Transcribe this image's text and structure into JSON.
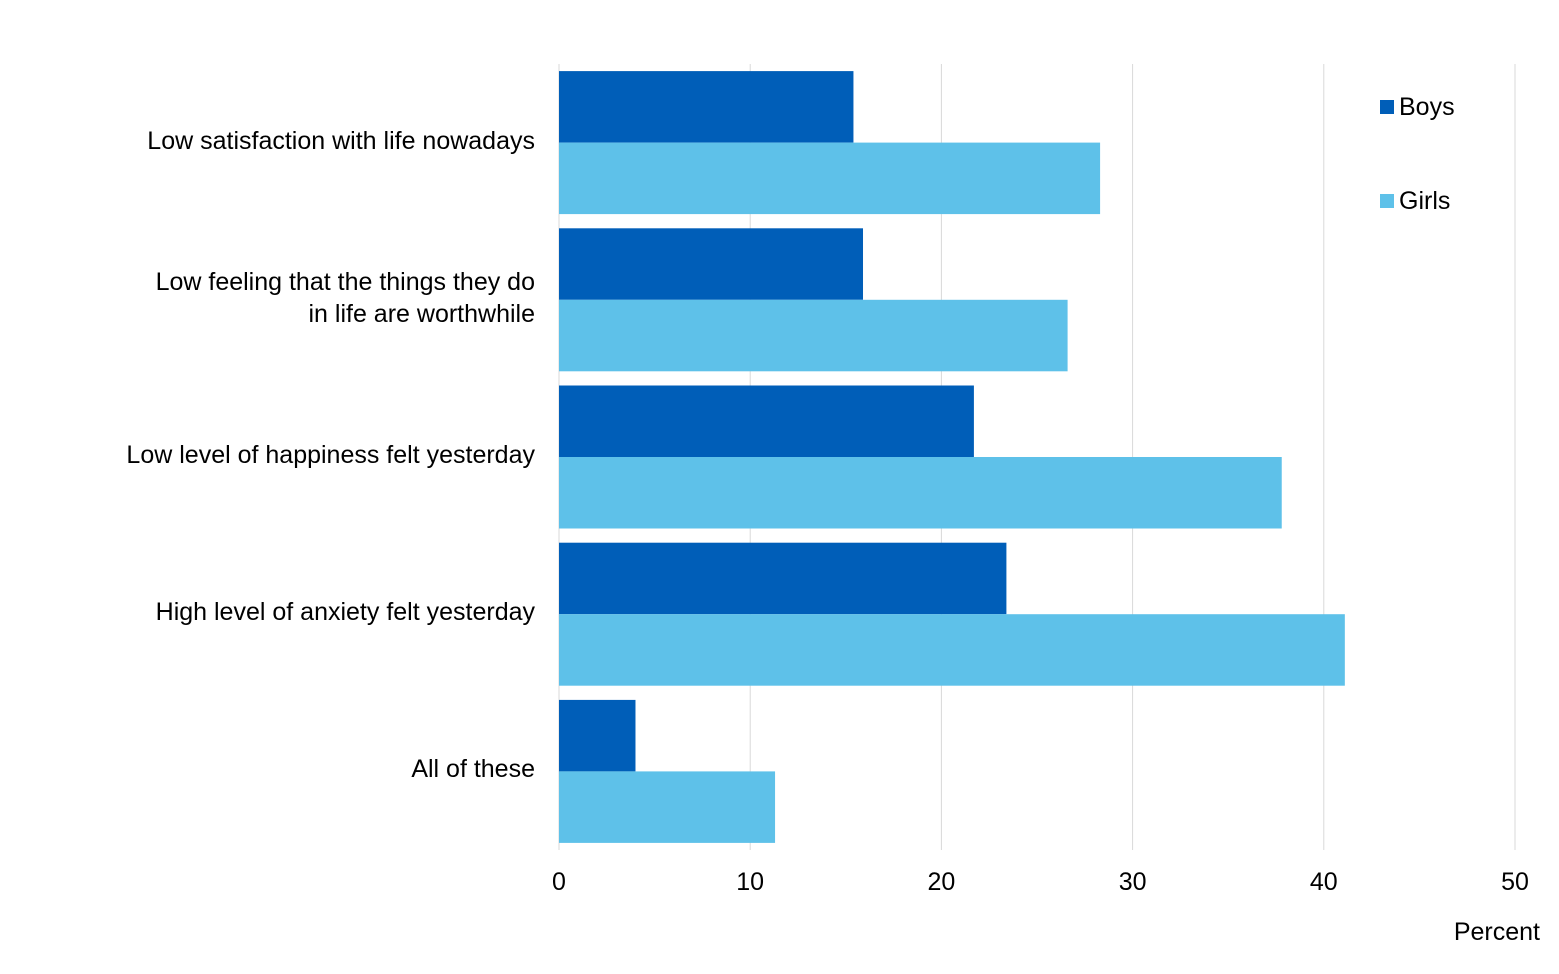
{
  "chart_data": {
    "type": "bar",
    "orientation": "horizontal",
    "categories": [
      "Low satisfaction with life nowadays",
      "Low feeling that the things they do in life are worthwhile",
      "Low level of happiness felt yesterday",
      "High level of anxiety felt yesterday",
      "All of these"
    ],
    "category_lines": [
      [
        "Low satisfaction with life nowadays"
      ],
      [
        "Low feeling that the things they do",
        "in life are worthwhile"
      ],
      [
        "Low level of happiness felt yesterday"
      ],
      [
        "High level of anxiety felt yesterday"
      ],
      [
        "All of these"
      ]
    ],
    "series": [
      {
        "name": "Boys",
        "color": "#005EB8",
        "values": [
          15.4,
          15.9,
          21.7,
          23.4,
          4.0
        ]
      },
      {
        "name": "Girls",
        "color": "#5EC1E9",
        "values": [
          28.3,
          26.6,
          37.8,
          41.1,
          11.3
        ]
      }
    ],
    "xlabel": "Percent",
    "ylabel": "",
    "xlim": [
      0,
      50
    ],
    "xticks": [
      "0",
      "10",
      "20",
      "30",
      "40",
      "50"
    ],
    "grid": "vertical",
    "legend_position": "top-right",
    "gridline_color": "#D9D9D9"
  }
}
